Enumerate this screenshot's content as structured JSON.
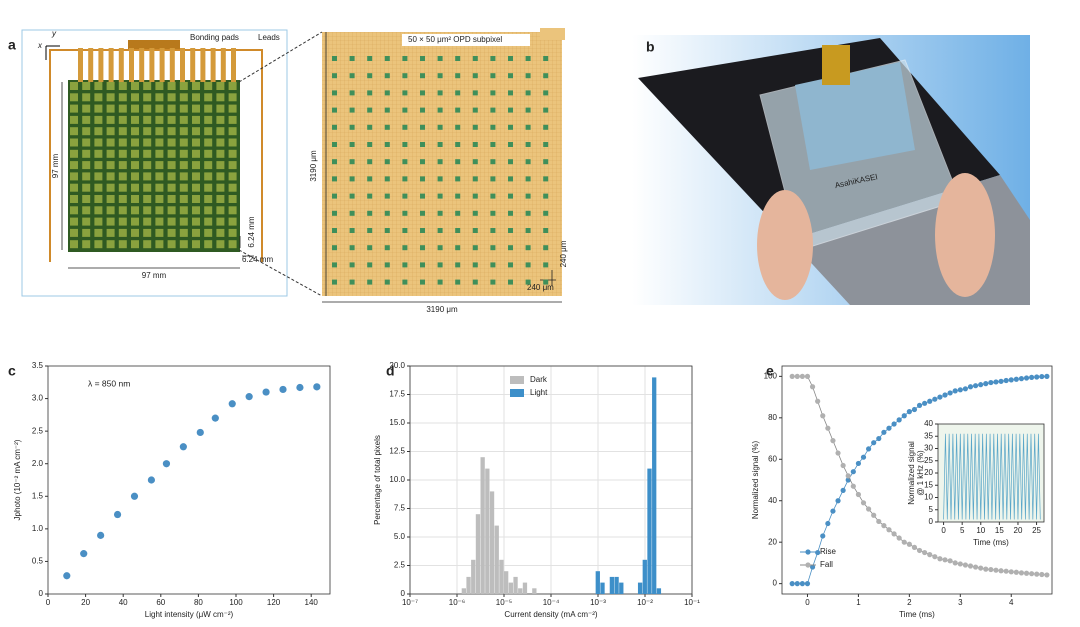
{
  "figure": {
    "panel_labels": [
      "a",
      "b",
      "c",
      "d",
      "e"
    ],
    "panel_a": {
      "x_axis": "x",
      "y_axis": "y",
      "bonding_pads": "Bonding pads",
      "leads": "Leads",
      "height": "97 mm",
      "width": "97 mm",
      "pitch_v": "6.24 mm",
      "pitch_h": "6.24 mm",
      "subpixel": "50 × 50 μm² OPD subpixel",
      "zoom_height": "3190 μm",
      "zoom_width": "3190 μm",
      "zoom_pitch_v": "240 μm",
      "zoom_pitch_h": "240 μm"
    },
    "panel_b": {
      "photo_text": "AsahiKASEI"
    }
  },
  "chart_data": [
    {
      "type": "scatter",
      "annotation": "λ = 850 nm",
      "xlabel": "Light intensity (μW cm⁻²)",
      "ylabel": "Jphoto (10⁻² mA cm⁻²)",
      "color": "#4a8fc4",
      "x": [
        10,
        19,
        28,
        37,
        46,
        55,
        63,
        72,
        81,
        89,
        98,
        107,
        116,
        125,
        134,
        143
      ],
      "values": [
        0.28,
        0.62,
        0.9,
        1.22,
        1.5,
        1.75,
        2.0,
        2.26,
        2.48,
        2.7,
        2.92,
        3.03,
        3.1,
        3.14,
        3.17,
        3.18
      ],
      "xlim": [
        0,
        150
      ],
      "xticks": [
        0,
        20,
        40,
        60,
        80,
        100,
        120,
        140
      ],
      "ylim": [
        0,
        3.5
      ],
      "yticks": [
        0,
        0.5,
        {
          "value": 1,
          "label": "1.0"
        },
        1.5,
        {
          "value": 2,
          "label": "2.0"
        },
        2.5,
        {
          "value": 3,
          "label": "3.0"
        },
        3.5
      ]
    },
    {
      "type": "histogram",
      "xscale": "log",
      "grid": true,
      "legend": "upper center",
      "xlabel": "Current density (mA cm⁻²)",
      "ylabel": "Percentage of total pixels",
      "series": [
        {
          "name": "Dark",
          "color": "#bdbdbd",
          "bins": [
            1.259e-06,
            1.585e-06,
            1.995e-06,
            2.512e-06,
            3.162e-06,
            3.981e-06,
            5.012e-06,
            6.31e-06,
            7.943e-06,
            1e-05,
            1.259e-05,
            1.585e-05,
            1.995e-05,
            2.512e-05,
            3.162e-05,
            3.981e-05,
            5.012e-05
          ],
          "values": [
            0.5,
            1.5,
            3,
            7,
            12,
            11,
            9,
            6,
            3,
            2,
            1,
            1.5,
            0.5,
            1,
            0,
            0.5
          ]
        },
        {
          "name": "Light",
          "color": "#3d8fc9",
          "bins": [
            0.0008913,
            0.001122,
            0.001413,
            0.001778,
            0.002239,
            0.002818,
            0.003548,
            0.004467,
            0.005623,
            0.007079,
            0.008913,
            0.01122,
            0.01413,
            0.01778,
            0.02239
          ],
          "values": [
            2,
            1,
            0,
            1.5,
            1.5,
            1,
            0,
            0,
            0,
            1,
            3,
            11,
            19,
            0.5
          ]
        }
      ],
      "xlim": [
        1e-07,
        0.1
      ],
      "xticks": [
        {
          "value": 1e-07,
          "label": "10⁻⁷"
        },
        {
          "value": 1e-06,
          "label": "10⁻⁶"
        },
        {
          "value": 1e-05,
          "label": "10⁻⁵"
        },
        {
          "value": 0.0001,
          "label": "10⁻⁴"
        },
        {
          "value": 0.001,
          "label": "10⁻³"
        },
        {
          "value": 0.01,
          "label": "10⁻²"
        },
        {
          "value": 0.1,
          "label": "10⁻¹"
        }
      ],
      "ylim": [
        0,
        20
      ],
      "yticks": [
        0,
        2.5,
        {
          "value": 5,
          "label": "5.0"
        },
        7.5,
        {
          "value": 10,
          "label": "10.0"
        },
        12.5,
        {
          "value": 15,
          "label": "15.0"
        },
        17.5,
        {
          "value": 20,
          "label": "20.0"
        }
      ]
    },
    {
      "type": "line",
      "legend": "lower left",
      "xlabel": "Time (ms)",
      "ylabel": "Normalized signal (%)",
      "x": [
        -0.3,
        -0.2,
        -0.1,
        0,
        0.1,
        0.2,
        0.3,
        0.4,
        0.5,
        0.6,
        0.7,
        0.8,
        0.9,
        1,
        1.1,
        1.2,
        1.3,
        1.4,
        1.5,
        1.6,
        1.7,
        1.8,
        1.9,
        2,
        2.1,
        2.2,
        2.3,
        2.4,
        2.5,
        2.6,
        2.7,
        2.8,
        2.9,
        3,
        3.1,
        3.2,
        3.3,
        3.4,
        3.5,
        3.6,
        3.7,
        3.8,
        3.9,
        4,
        4.1,
        4.2,
        4.3,
        4.4,
        4.5,
        4.6,
        4.7
      ],
      "series": [
        {
          "name": "Rise",
          "color": "#4a8fc4",
          "values": [
            0,
            0,
            0,
            0,
            8,
            15,
            23,
            29,
            35,
            40,
            45,
            50,
            54,
            58,
            61,
            65,
            68,
            70,
            73,
            75,
            77,
            79,
            81,
            83,
            84,
            86,
            87,
            88,
            89,
            90,
            91,
            92,
            93,
            93.5,
            94,
            95,
            95.5,
            96,
            96.5,
            97,
            97.3,
            97.6,
            98,
            98.3,
            98.6,
            98.9,
            99.2,
            99.5,
            99.7,
            99.9,
            100
          ]
        },
        {
          "name": "Fall",
          "color": "#b0b0b0",
          "values": [
            100,
            100,
            100,
            100,
            95,
            88,
            81,
            75,
            69,
            63,
            57,
            52,
            47,
            43,
            39,
            36,
            33,
            30,
            28,
            26,
            24,
            22,
            20,
            19,
            17.5,
            16,
            15,
            14,
            13,
            12,
            11.5,
            11,
            10,
            9.5,
            9,
            8.5,
            8,
            7.5,
            7,
            6.8,
            6.5,
            6.2,
            6,
            5.7,
            5.5,
            5.2,
            5,
            4.8,
            4.6,
            4.4,
            4.2
          ]
        }
      ],
      "xlim": [
        -0.5,
        4.8
      ],
      "xticks": [
        0,
        1,
        2,
        3,
        4
      ],
      "ylim": [
        -5,
        105
      ],
      "yticks": [
        0,
        20,
        40,
        60,
        80,
        100
      ],
      "inset": {
        "type": "line",
        "xlabel": "Time (ms)",
        "ylabel": [
          "Normalized signal",
          "@ 1 kHz (%)"
        ],
        "color": "#5aa6c8",
        "x": [
          0,
          0.5,
          1,
          1.5,
          2,
          2.5,
          3,
          3.5,
          4,
          4.5,
          5,
          5.5,
          6,
          6.5,
          7,
          7.5,
          8,
          8.5,
          9,
          9.5,
          10,
          10.5,
          11,
          11.5,
          12,
          12.5,
          13,
          13.5,
          14,
          14.5,
          15,
          15.5,
          16,
          16.5,
          17,
          17.5,
          18,
          18.5,
          19,
          19.5,
          20,
          20.5,
          21,
          21.5,
          22,
          22.5,
          23,
          23.5,
          24,
          24.5,
          25,
          25.5,
          26
        ],
        "values": [
          1,
          36,
          1,
          36,
          1,
          36,
          1,
          36,
          1,
          36,
          1,
          36,
          1,
          36,
          1,
          36,
          1,
          36,
          1,
          36,
          1,
          36,
          1,
          36,
          1,
          36,
          1,
          36,
          1,
          36,
          1,
          36,
          1,
          36,
          1,
          36,
          1,
          36,
          1,
          36,
          1,
          36,
          1,
          36,
          1,
          36,
          1,
          36,
          1,
          36,
          1,
          36,
          1
        ],
        "xlim": [
          -1.5,
          27
        ],
        "xticks": [
          0,
          5,
          10,
          15,
          20,
          25
        ],
        "ylim": [
          0,
          40
        ],
        "yticks": [
          0,
          5,
          10,
          15,
          20,
          25,
          30,
          35,
          40
        ]
      }
    }
  ]
}
